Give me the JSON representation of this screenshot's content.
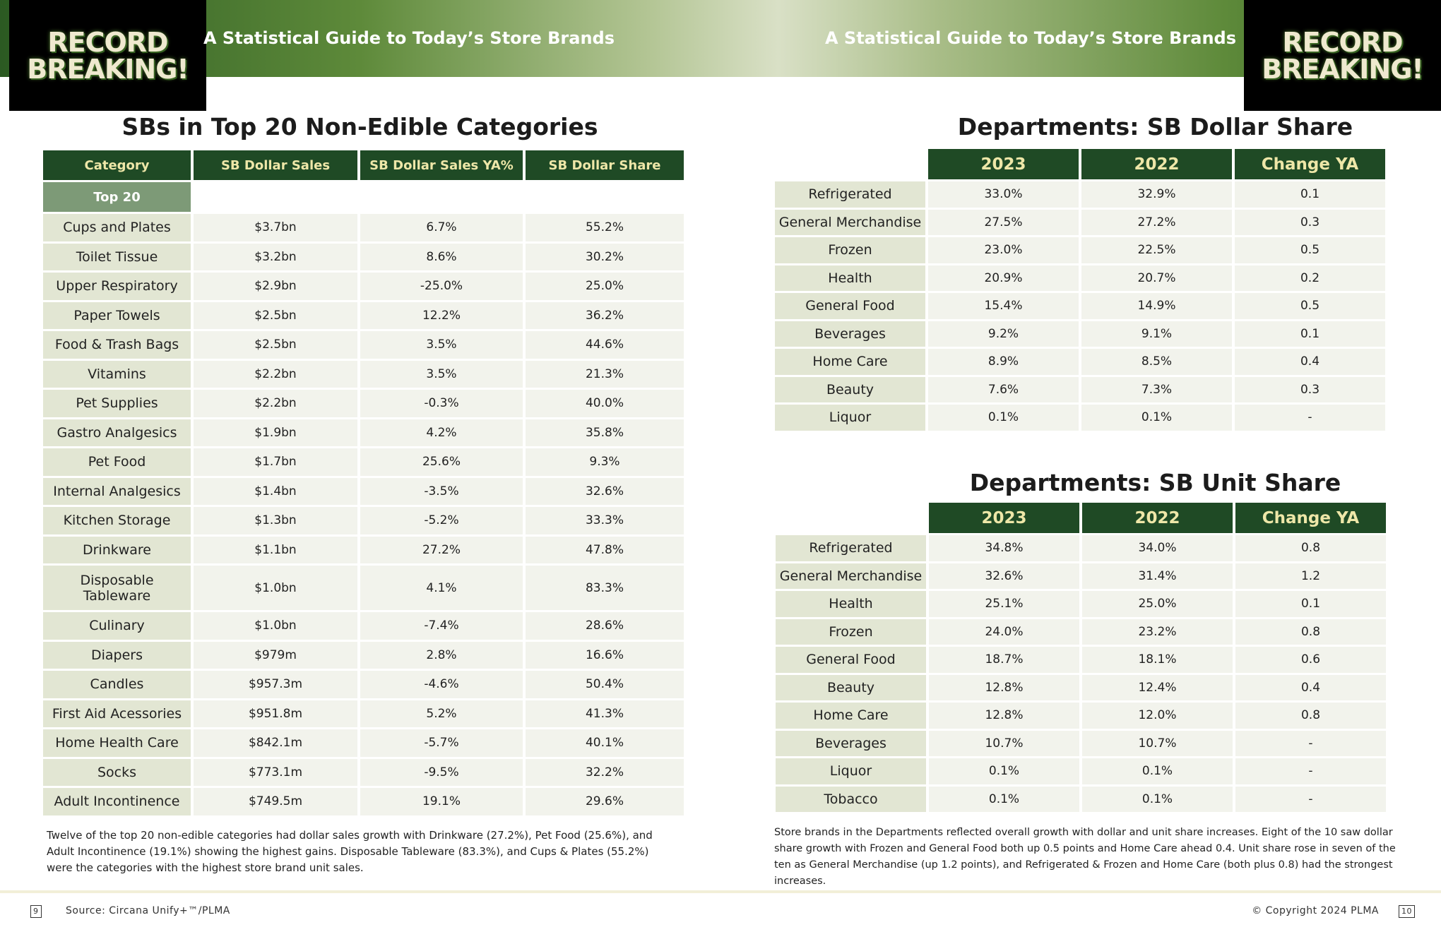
{
  "header": {
    "title": "A Statistical Guide to Today’s Store Brands",
    "logo": "RECORD BREAKING!"
  },
  "left": {
    "title": "SBs in Top 20 Non-Edible Categories",
    "columns": [
      "Category",
      "SB Dollar Sales",
      "SB Dollar Sales YA%",
      "SB Dollar Share"
    ],
    "section": "Top 20",
    "rows": [
      [
        "Cups and Plates",
        "$3.7bn",
        "6.7%",
        "55.2%"
      ],
      [
        "Toilet Tissue",
        "$3.2bn",
        "8.6%",
        "30.2%"
      ],
      [
        "Upper Respiratory",
        "$2.9bn",
        "-25.0%",
        "25.0%"
      ],
      [
        "Paper Towels",
        "$2.5bn",
        "12.2%",
        "36.2%"
      ],
      [
        "Food & Trash Bags",
        "$2.5bn",
        "3.5%",
        "44.6%"
      ],
      [
        "Vitamins",
        "$2.2bn",
        "3.5%",
        "21.3%"
      ],
      [
        "Pet Supplies",
        "$2.2bn",
        "-0.3%",
        "40.0%"
      ],
      [
        "Gastro Analgesics",
        "$1.9bn",
        "4.2%",
        "35.8%"
      ],
      [
        "Pet Food",
        "$1.7bn",
        "25.6%",
        "9.3%"
      ],
      [
        "Internal Analgesics",
        "$1.4bn",
        "-3.5%",
        "32.6%"
      ],
      [
        "Kitchen Storage",
        "$1.3bn",
        "-5.2%",
        "33.3%"
      ],
      [
        "Drinkware",
        "$1.1bn",
        "27.2%",
        "47.8%"
      ],
      [
        "Disposable Tableware",
        "$1.0bn",
        "4.1%",
        "83.3%"
      ],
      [
        "Culinary",
        "$1.0bn",
        "-7.4%",
        "28.6%"
      ],
      [
        "Diapers",
        "$979m",
        "2.8%",
        "16.6%"
      ],
      [
        "Candles",
        "$957.3m",
        "-4.6%",
        "50.4%"
      ],
      [
        "First Aid Acessories",
        "$951.8m",
        "5.2%",
        "41.3%"
      ],
      [
        "Home Health Care",
        "$842.1m",
        "-5.7%",
        "40.1%"
      ],
      [
        "Socks",
        "$773.1m",
        "-9.5%",
        "32.2%"
      ],
      [
        "Adult Incontinence",
        "$749.5m",
        "19.1%",
        "29.6%"
      ]
    ],
    "note": "Twelve of the top 20 non-edible categories had dollar sales growth with Drinkware (27.2%), Pet Food (25.6%), and Adult Incontinence (19.1%) showing the highest gains. Disposable Tableware (83.3%), and Cups & Plates (55.2%) were the categories with the highest store brand unit sales."
  },
  "dollar_share": {
    "title": "Departments: SB Dollar Share",
    "columns": [
      "2023",
      "2022",
      "Change YA"
    ],
    "rows": [
      [
        "Refrigerated",
        "33.0%",
        "32.9%",
        "0.1"
      ],
      [
        "General Merchandise",
        "27.5%",
        "27.2%",
        "0.3"
      ],
      [
        "Frozen",
        "23.0%",
        "22.5%",
        "0.5"
      ],
      [
        "Health",
        "20.9%",
        "20.7%",
        "0.2"
      ],
      [
        "General Food",
        "15.4%",
        "14.9%",
        "0.5"
      ],
      [
        "Beverages",
        "9.2%",
        "9.1%",
        "0.1"
      ],
      [
        "Home Care",
        "8.9%",
        "8.5%",
        "0.4"
      ],
      [
        "Beauty",
        "7.6%",
        "7.3%",
        "0.3"
      ],
      [
        "Liquor",
        "0.1%",
        "0.1%",
        "-"
      ]
    ]
  },
  "unit_share": {
    "title": "Departments: SB Unit Share",
    "columns": [
      "2023",
      "2022",
      "Change YA"
    ],
    "rows": [
      [
        "Refrigerated",
        "34.8%",
        "34.0%",
        "0.8"
      ],
      [
        "General Merchandise",
        "32.6%",
        "31.4%",
        "1.2"
      ],
      [
        "Health",
        "25.1%",
        "25.0%",
        "0.1"
      ],
      [
        "Frozen",
        "24.0%",
        "23.2%",
        "0.8"
      ],
      [
        "General Food",
        "18.7%",
        "18.1%",
        "0.6"
      ],
      [
        "Beauty",
        "12.8%",
        "12.4%",
        "0.4"
      ],
      [
        "Home Care",
        "12.8%",
        "12.0%",
        "0.8"
      ],
      [
        "Beverages",
        "10.7%",
        "10.7%",
        "-"
      ],
      [
        "Liquor",
        "0.1%",
        "0.1%",
        "-"
      ],
      [
        "Tobacco",
        "0.1%",
        "0.1%",
        "-"
      ]
    ]
  },
  "right_note": "Store brands in the Departments reflected overall growth with dollar and unit share increases. Eight of the 10 saw dollar share growth with Frozen and General Food both up 0.5 points and Home Care ahead 0.4. Unit share rose in seven of the ten as General Merchandise (up 1.2 points), and Refrigerated & Frozen and Home Care (both plus 0.8) had the strongest increases.",
  "footer": {
    "page_left": "9",
    "source": "Source: Circana Unify+™/PLMA",
    "copyright": "© Copyright 2024 PLMA",
    "page_right": "10"
  }
}
